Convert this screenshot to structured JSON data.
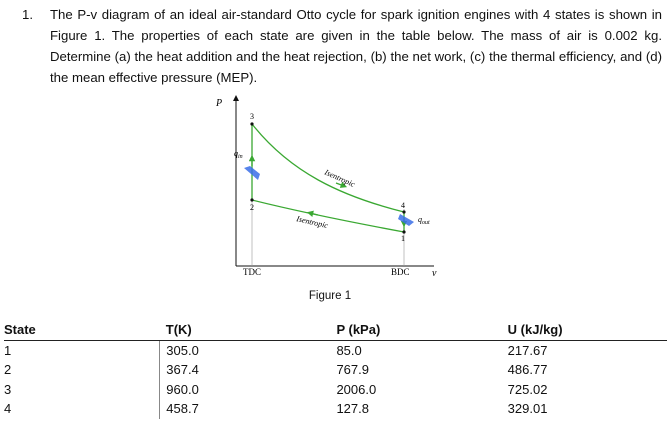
{
  "problem": {
    "number": "1.",
    "text": "The P-v diagram of an ideal air-standard Otto cycle for spark ignition engines with 4 states is shown in Figure 1. The properties of each state are given in the table below. The mass of air is 0.002 kg. Determine (a) the heat addition and the heat rejection, (b) the net work, (c) the thermal efficiency, and (d) the mean effective pressure (MEP)."
  },
  "figure": {
    "caption": "Figure 1",
    "axis_p": "P",
    "axis_v": "v",
    "state_labels": [
      "1",
      "2",
      "3",
      "4"
    ],
    "process_label_upper": "Isentropic",
    "process_label_lower": "Isentropic",
    "q_in": "q",
    "q_in_sub": "in",
    "q_out": "q",
    "q_out_sub": "out",
    "tdc": "TDC",
    "bdc": "BDC",
    "colors": {
      "curve": "#3aa832",
      "heat_arrow": "#3a6fe8",
      "axis": "#111111"
    }
  },
  "table": {
    "headers": [
      "State",
      "T(K)",
      "P (kPa)",
      "U (kJ/kg)"
    ],
    "rows": [
      [
        "1",
        "305.0",
        "85.0",
        "217.67"
      ],
      [
        "2",
        "367.4",
        "767.9",
        "486.77"
      ],
      [
        "3",
        "960.0",
        "2006.0",
        "725.02"
      ],
      [
        "4",
        "458.7",
        "127.8",
        "329.01"
      ]
    ]
  }
}
